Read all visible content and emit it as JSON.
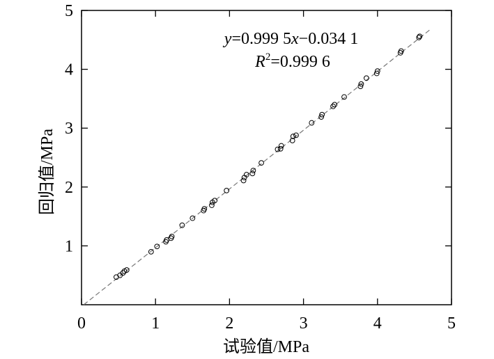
{
  "chart_data": {
    "type": "scatter",
    "xlabel": "试验值/MPa",
    "ylabel": "回归值/MPa",
    "xlim": [
      0,
      5
    ],
    "ylim": [
      0,
      5
    ],
    "xticks": [
      0,
      1,
      2,
      3,
      4,
      5
    ],
    "yticks": [
      1,
      2,
      3,
      4,
      5
    ],
    "grid": false,
    "fit_line": {
      "slope": 0.9995,
      "intercept": -0.0341,
      "style": "dashed"
    },
    "annotation": {
      "equation": {
        "y": "y",
        "eq1": "=0.999 5",
        "x": "x",
        "eq2": "−0.034 1"
      },
      "r2": {
        "R": "R",
        "sup": "2",
        "value": "=0.999 6"
      }
    },
    "points": [
      [
        0.47,
        0.47
      ],
      [
        0.52,
        0.5
      ],
      [
        0.56,
        0.54
      ],
      [
        0.58,
        0.57
      ],
      [
        0.61,
        0.59
      ],
      [
        0.94,
        0.9
      ],
      [
        1.02,
        0.99
      ],
      [
        1.14,
        1.07
      ],
      [
        1.15,
        1.1
      ],
      [
        1.21,
        1.13
      ],
      [
        1.22,
        1.16
      ],
      [
        1.36,
        1.35
      ],
      [
        1.5,
        1.47
      ],
      [
        1.65,
        1.6
      ],
      [
        1.66,
        1.63
      ],
      [
        1.76,
        1.69
      ],
      [
        1.77,
        1.74
      ],
      [
        1.8,
        1.77
      ],
      [
        1.96,
        1.94
      ],
      [
        2.19,
        2.11
      ],
      [
        2.2,
        2.16
      ],
      [
        2.23,
        2.21
      ],
      [
        2.31,
        2.23
      ],
      [
        2.32,
        2.28
      ],
      [
        2.43,
        2.41
      ],
      [
        2.65,
        2.64
      ],
      [
        2.69,
        2.65
      ],
      [
        2.7,
        2.7
      ],
      [
        2.85,
        2.79
      ],
      [
        2.86,
        2.86
      ],
      [
        2.9,
        2.88
      ],
      [
        3.11,
        3.09
      ],
      [
        3.24,
        3.19
      ],
      [
        3.25,
        3.23
      ],
      [
        3.4,
        3.37
      ],
      [
        3.42,
        3.4
      ],
      [
        3.55,
        3.53
      ],
      [
        3.77,
        3.71
      ],
      [
        3.78,
        3.75
      ],
      [
        3.85,
        3.85
      ],
      [
        3.99,
        3.93
      ],
      [
        4.0,
        3.97
      ],
      [
        4.31,
        4.28
      ],
      [
        4.32,
        4.31
      ],
      [
        4.56,
        4.54
      ],
      [
        4.57,
        4.56
      ]
    ]
  }
}
